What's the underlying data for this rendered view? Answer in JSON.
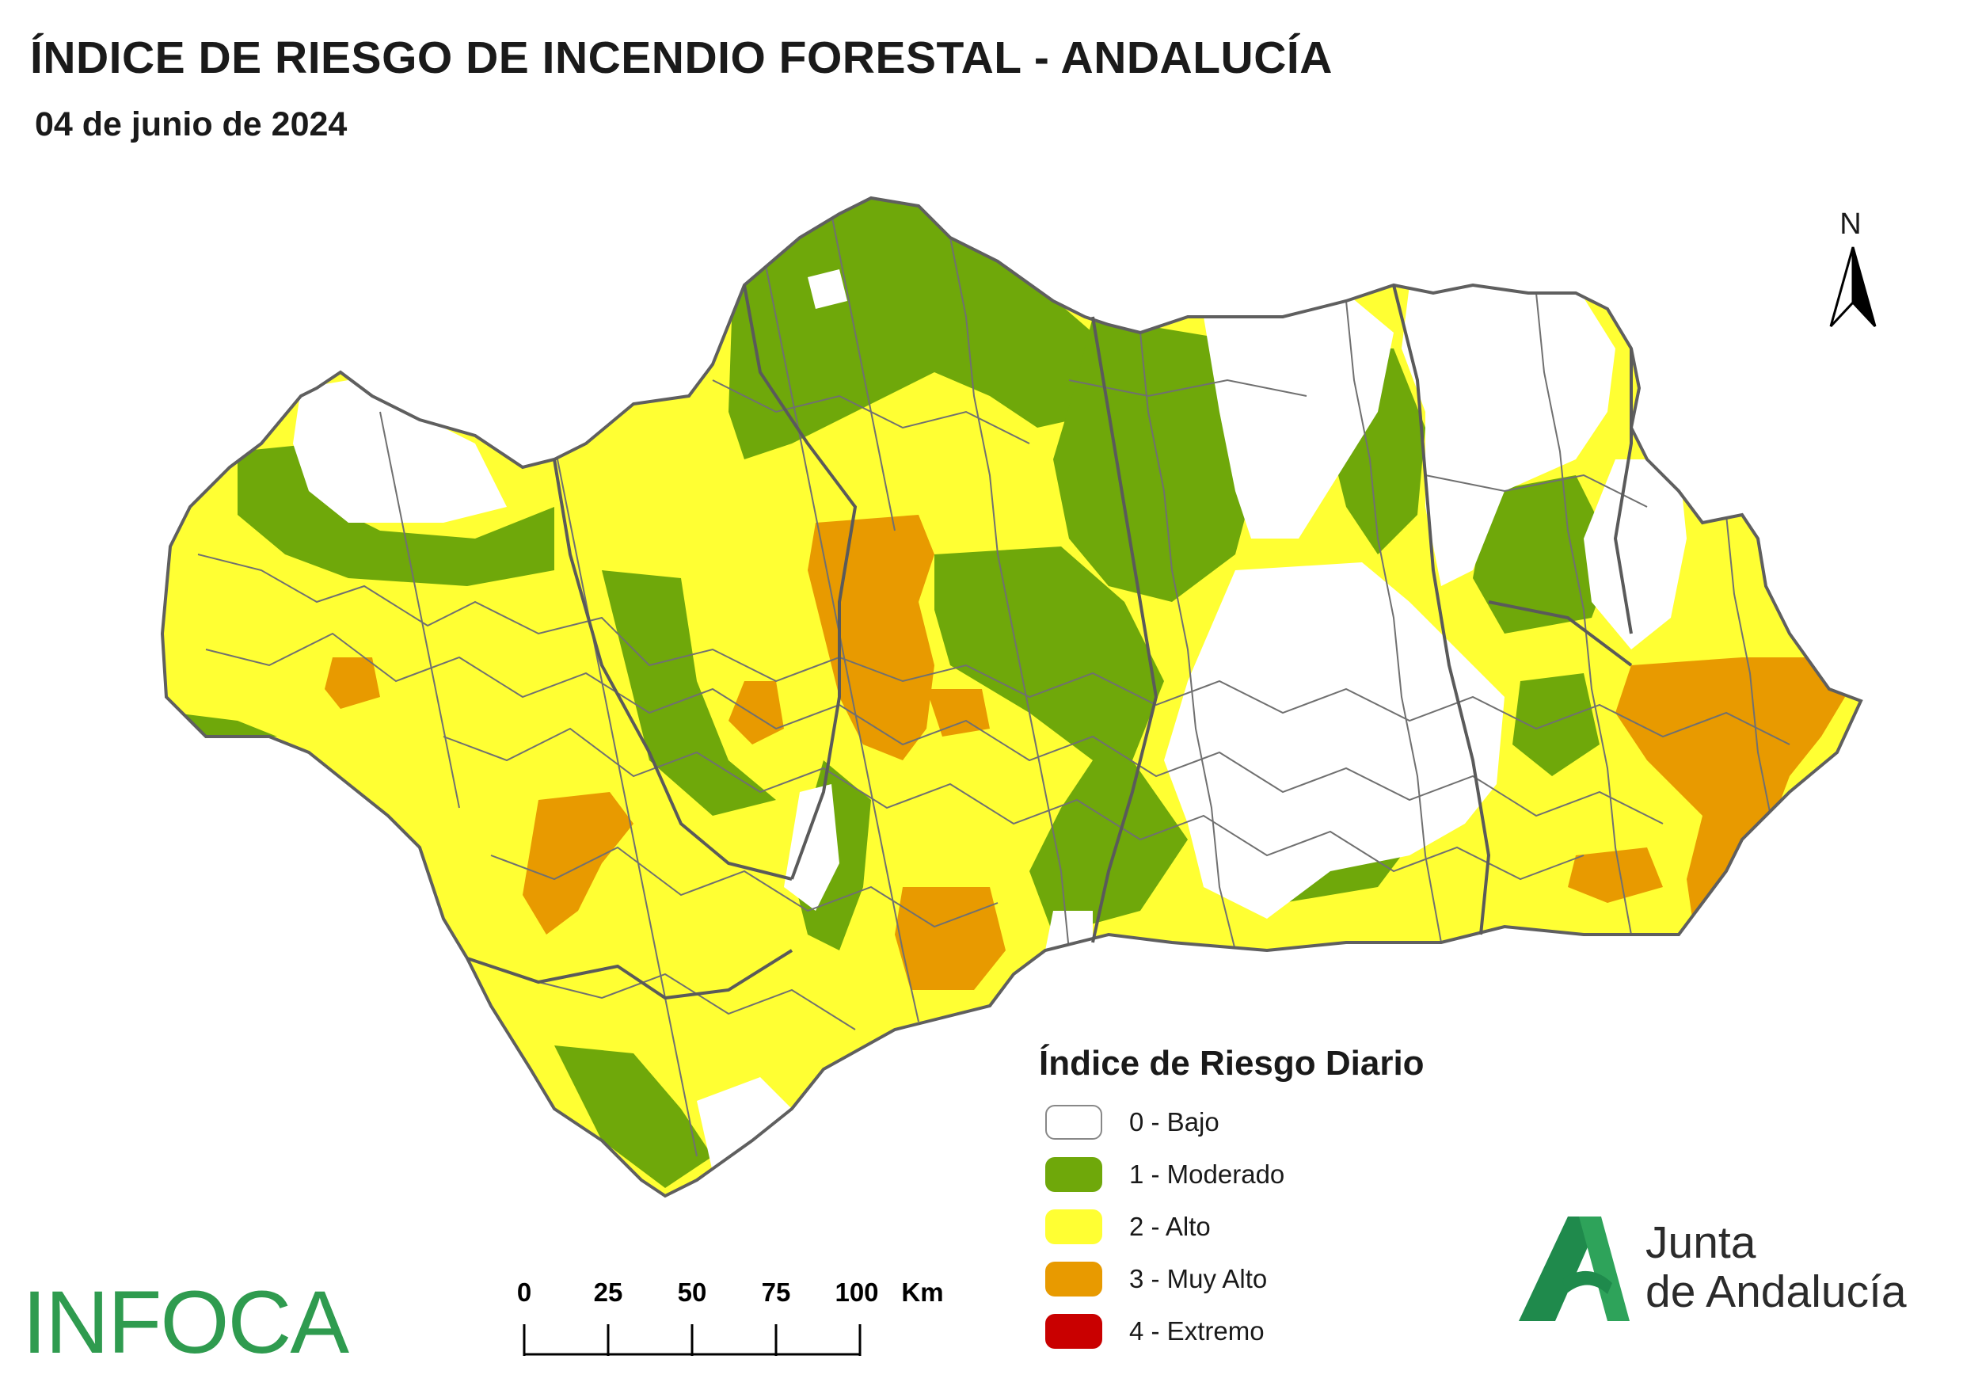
{
  "title": "ÍNDICE DE RIESGO DE INCENDIO FORESTAL - ANDALUCÍA",
  "subtitle": "04 de junio de 2024",
  "north_label": "N",
  "legend": {
    "title": "Índice de Riesgo Diario",
    "items": [
      {
        "label": "0 - Bajo",
        "color": "#ffffff"
      },
      {
        "label": "1 - Moderado",
        "color": "#6fa80a"
      },
      {
        "label": "2 - Alto",
        "color": "#ffff33"
      },
      {
        "label": "3 - Muy Alto",
        "color": "#e89a00"
      },
      {
        "label": "4 - Extremo",
        "color": "#c90000"
      }
    ]
  },
  "scalebar": {
    "ticks": [
      "0",
      "25",
      "50",
      "75",
      "100"
    ],
    "unit": "Km"
  },
  "brand_left": "INFOCA",
  "brand_right": {
    "line1": "Junta",
    "line2": "de Andalucía",
    "color": "#1f8a4c"
  }
}
